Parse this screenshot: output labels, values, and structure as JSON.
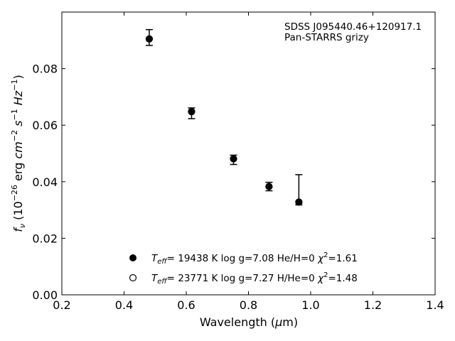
{
  "chart_data": {
    "type": "scatter",
    "title": "",
    "xlabel": "Wavelength (μm)",
    "ylabel": "f_ν (10^−26 erg cm^−2 s^−1 Hz^−1)",
    "xlim": [
      0.2,
      1.4
    ],
    "ylim": [
      0.0,
      0.1
    ],
    "x_ticks": [
      "0.2",
      "0.4",
      "0.6",
      "0.8",
      "1.0",
      "1.2",
      "1.4"
    ],
    "y_ticks": [
      "0.00",
      "0.02",
      "0.04",
      "0.06",
      "0.08"
    ],
    "grid": false,
    "annotation": [
      "SDSS J095440.46+120917.1",
      "Pan-STARRS grizy"
    ],
    "legend_position": "lower-center",
    "series": [
      {
        "name": "T_eff= 19438 K  log g=7.08  He/H=0  χ²=1.61",
        "marker": "filled-circle",
        "x": [
          0.481,
          0.617,
          0.752,
          0.866,
          0.962
        ],
        "y": [
          0.0905,
          0.0648,
          0.0481,
          0.0383,
          0.0328
        ],
        "yerr_low": [
          0.0023,
          0.0025,
          0.002,
          0.0015,
          0.001
        ],
        "yerr_high": [
          0.0033,
          0.0013,
          0.0013,
          0.0015,
          0.0097
        ]
      },
      {
        "name": "T_eff= 23771 K  log g=7.27  H/He=0  χ²=1.48",
        "marker": "open-circle",
        "x": [
          0.481,
          0.617,
          0.752,
          0.866,
          0.962
        ],
        "y": [
          0.0905,
          0.0648,
          0.0481,
          0.0383,
          0.0328
        ]
      }
    ]
  }
}
